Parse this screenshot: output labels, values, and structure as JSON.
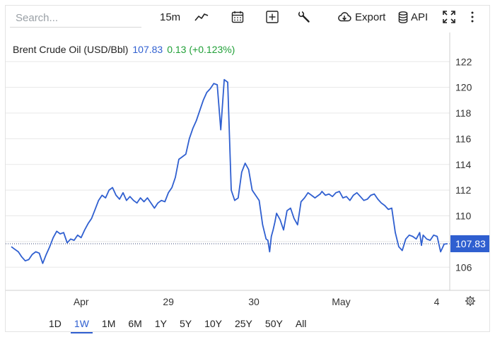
{
  "toolbar": {
    "search_placeholder": "Search...",
    "interval_label": "15m",
    "export_label": "Export",
    "api_label": "API"
  },
  "legend": {
    "name": "Brent Crude Oil (USD/Bbl)",
    "last": "107.83",
    "change": "0.13 (+0.123%)"
  },
  "price_tag": "107.83",
  "colors": {
    "line": "#2f5fd0",
    "change_positive": "#21a038",
    "grid": "#e8e8e8"
  },
  "ranges": [
    "1D",
    "1W",
    "1M",
    "6M",
    "1Y",
    "5Y",
    "10Y",
    "25Y",
    "50Y",
    "All"
  ],
  "active_range": "1W",
  "chart_data": {
    "type": "line",
    "title": "Brent Crude Oil (USD/Bbl)",
    "ylim": [
      104.2,
      123.5
    ],
    "yticks": [
      106,
      108,
      110,
      112,
      114,
      116,
      118,
      120,
      122
    ],
    "ytick_labels": [
      "106",
      "",
      "110",
      "112",
      "114",
      "116",
      "118",
      "120",
      "122"
    ],
    "last_value": 107.83,
    "xtick_labels": [
      "Apr",
      "29",
      "30",
      "May",
      "4"
    ],
    "xtick_positions": [
      0.16,
      0.36,
      0.556,
      0.756,
      0.975
    ],
    "grid": true,
    "series": [
      {
        "x": [
          0.0,
          0.008,
          0.016,
          0.024,
          0.032,
          0.04,
          0.048,
          0.056,
          0.064,
          0.072,
          0.08,
          0.088,
          0.096,
          0.104,
          0.112,
          0.12,
          0.128,
          0.136,
          0.144,
          0.152,
          0.16,
          0.168,
          0.176,
          0.184,
          0.192,
          0.2,
          0.208,
          0.216,
          0.224,
          0.232,
          0.24,
          0.248,
          0.256,
          0.264,
          0.272,
          0.28,
          0.288,
          0.296,
          0.304,
          0.312,
          0.32,
          0.328,
          0.336,
          0.344,
          0.352,
          0.36,
          0.368,
          0.376,
          0.384,
          0.392,
          0.4,
          0.408,
          0.416,
          0.424,
          0.432,
          0.44,
          0.448,
          0.456,
          0.464,
          0.472,
          0.48,
          0.488,
          0.496,
          0.504,
          0.512,
          0.52,
          0.528,
          0.536,
          0.544,
          0.552,
          0.56,
          0.568,
          0.576,
          0.584,
          0.588,
          0.592,
          0.596,
          0.6,
          0.604,
          0.608,
          0.616,
          0.624,
          0.632,
          0.64,
          0.648,
          0.656,
          0.664,
          0.672,
          0.68,
          0.688,
          0.696,
          0.704,
          0.708,
          0.712,
          0.72,
          0.728,
          0.736,
          0.744,
          0.752,
          0.76,
          0.768,
          0.776,
          0.784,
          0.792,
          0.8,
          0.808,
          0.816,
          0.824,
          0.832,
          0.84,
          0.848,
          0.856,
          0.864,
          0.872,
          0.88,
          0.888,
          0.896,
          0.904,
          0.912,
          0.92,
          0.928,
          0.936,
          0.94,
          0.944,
          0.952,
          0.96,
          0.968,
          0.976,
          0.984,
          0.988,
          0.992,
          1.0
        ],
        "values": [
          107.6,
          107.4,
          107.2,
          106.8,
          106.5,
          106.6,
          107.0,
          107.2,
          107.1,
          106.3,
          107.0,
          107.6,
          108.3,
          108.8,
          108.6,
          108.7,
          107.9,
          108.2,
          108.1,
          108.5,
          108.3,
          108.9,
          109.4,
          109.8,
          110.5,
          111.2,
          111.6,
          111.4,
          112.0,
          112.2,
          111.6,
          111.3,
          111.8,
          111.2,
          111.5,
          111.2,
          111.0,
          111.4,
          111.1,
          111.4,
          111.0,
          110.6,
          111.0,
          111.2,
          111.1,
          111.8,
          112.2,
          113.0,
          114.4,
          114.6,
          114.8,
          116.0,
          116.8,
          117.4,
          118.2,
          119.0,
          119.6,
          119.9,
          120.3,
          120.2,
          116.7,
          120.6,
          120.4,
          112.0,
          111.2,
          111.4,
          113.4,
          114.1,
          113.6,
          112.0,
          111.6,
          111.2,
          109.3,
          108.2,
          108.1,
          107.2,
          108.4,
          108.9,
          109.5,
          110.2,
          109.7,
          108.9,
          110.4,
          110.6,
          109.8,
          109.3,
          111.1,
          111.4,
          111.8,
          111.6,
          111.4,
          111.6,
          111.7,
          111.9,
          111.6,
          111.7,
          111.5,
          111.8,
          111.9,
          111.4,
          111.5,
          111.2,
          111.6,
          111.8,
          111.5,
          111.2,
          111.3,
          111.6,
          111.7,
          111.3,
          111.0,
          110.8,
          110.5,
          110.6,
          108.7,
          107.6,
          107.3,
          108.2,
          108.5,
          108.4,
          108.2,
          108.7,
          107.7,
          108.5,
          108.2,
          108.1,
          108.5,
          108.4,
          107.2,
          107.5,
          107.8,
          107.83
        ]
      }
    ]
  }
}
